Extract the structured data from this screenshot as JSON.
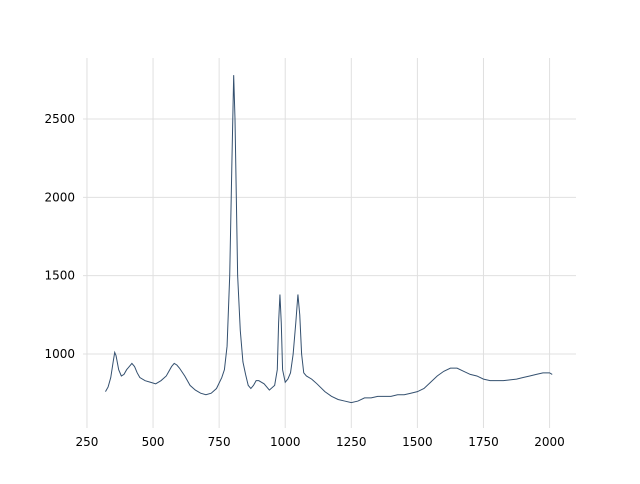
{
  "chart_data": {
    "type": "line",
    "x": [
      320,
      330,
      340,
      350,
      355,
      360,
      370,
      380,
      390,
      400,
      410,
      420,
      430,
      440,
      450,
      470,
      490,
      510,
      530,
      550,
      570,
      580,
      590,
      600,
      620,
      640,
      660,
      680,
      700,
      720,
      740,
      760,
      770,
      780,
      790,
      798,
      805,
      810,
      815,
      820,
      830,
      840,
      850,
      860,
      870,
      880,
      890,
      900,
      920,
      940,
      960,
      970,
      975,
      980,
      985,
      990,
      1000,
      1010,
      1020,
      1030,
      1040,
      1048,
      1055,
      1062,
      1070,
      1080,
      1100,
      1120,
      1150,
      1175,
      1200,
      1225,
      1250,
      1275,
      1300,
      1325,
      1350,
      1375,
      1400,
      1425,
      1450,
      1475,
      1500,
      1525,
      1550,
      1575,
      1600,
      1625,
      1650,
      1675,
      1700,
      1725,
      1750,
      1775,
      1800,
      1825,
      1850,
      1875,
      1900,
      1925,
      1950,
      1975,
      2000,
      2010
    ],
    "series": [
      {
        "color": "#34506f",
        "values": [
          760,
          790,
          850,
          960,
          1010,
          990,
          900,
          860,
          870,
          900,
          920,
          940,
          920,
          880,
          850,
          830,
          820,
          810,
          830,
          860,
          920,
          940,
          930,
          910,
          860,
          800,
          770,
          750,
          740,
          750,
          780,
          850,
          900,
          1050,
          1500,
          2200,
          2780,
          2500,
          2000,
          1500,
          1150,
          950,
          870,
          800,
          780,
          800,
          830,
          830,
          810,
          770,
          800,
          900,
          1200,
          1380,
          1200,
          900,
          820,
          840,
          880,
          1000,
          1200,
          1380,
          1250,
          1000,
          880,
          860,
          840,
          810,
          760,
          730,
          710,
          700,
          690,
          700,
          720,
          720,
          730,
          730,
          730,
          740,
          740,
          750,
          760,
          780,
          820,
          860,
          890,
          910,
          910,
          890,
          870,
          860,
          840,
          830,
          830,
          830,
          835,
          840,
          850,
          860,
          870,
          880,
          880,
          870
        ]
      }
    ],
    "xlim": [
      235,
      2100
    ],
    "ylim": [
      528,
      2889
    ],
    "xticks": [
      250,
      500,
      750,
      1000,
      1250,
      1500,
      1750,
      2000
    ],
    "yticks": [
      1000,
      1500,
      2000,
      2500
    ],
    "grid": true
  }
}
